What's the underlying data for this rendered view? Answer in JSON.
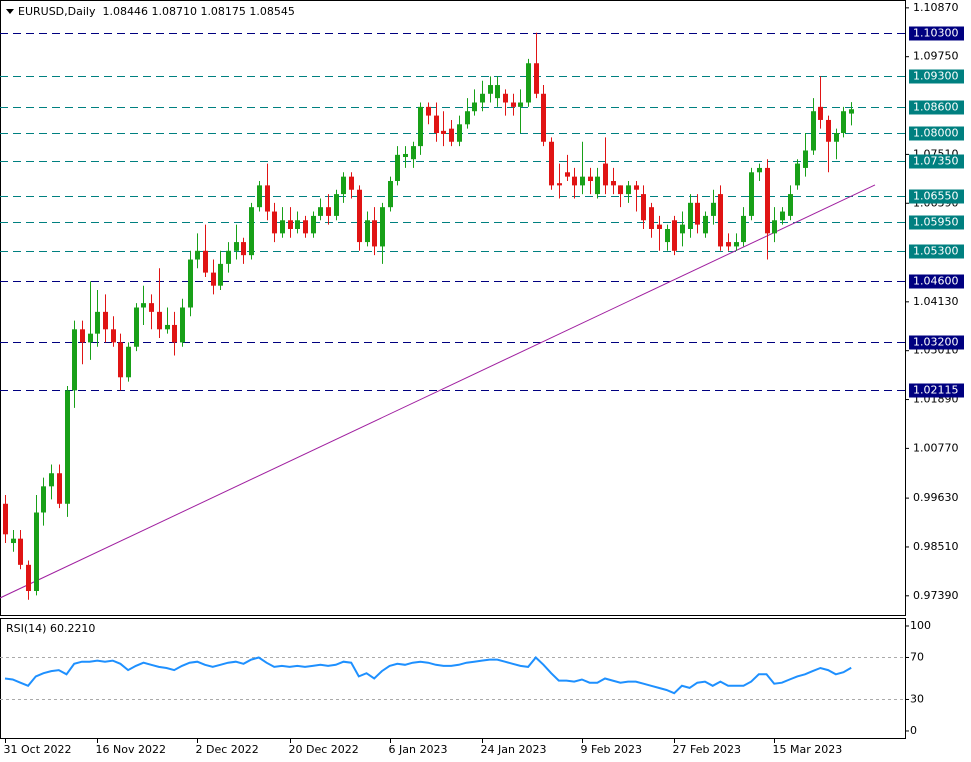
{
  "chart_data": {
    "type": "candlestick",
    "header": "EURUSD,Daily  1.08446 1.08710 1.08175 1.08545",
    "up_color": "#18a018",
    "down_color": "#e01414",
    "xlim": [
      -0.65,
      117
    ],
    "ylim": [
      0.9695,
      1.1105
    ],
    "xticks": [
      {
        "value": 0,
        "label": "31 Oct 2022"
      },
      {
        "value": 12,
        "label": "16 Nov 2022"
      },
      {
        "value": 25,
        "label": "2 Dec 2022"
      },
      {
        "value": 37,
        "label": "20 Dec 2022"
      },
      {
        "value": 50,
        "label": "6 Jan 2023"
      },
      {
        "value": 62,
        "label": "24 Jan 2023"
      },
      {
        "value": 75,
        "label": "9 Feb 2023"
      },
      {
        "value": 87,
        "label": "27 Feb 2023"
      },
      {
        "value": 100,
        "label": "15 Mar 2023"
      }
    ],
    "yticks": [
      {
        "value": 1.1087,
        "label": "1.10870"
      },
      {
        "value": 1.0975,
        "label": "1.09750"
      },
      {
        "value": 1.0751,
        "label": "1.07510"
      },
      {
        "value": 1.0639,
        "label": "1.06390"
      },
      {
        "value": 1.0413,
        "label": "1.04130"
      },
      {
        "value": 1.0301,
        "label": "1.03010"
      },
      {
        "value": 1.0189,
        "label": "1.01890"
      },
      {
        "value": 1.0077,
        "label": "1.00770"
      },
      {
        "value": 0.9963,
        "label": "0.99630"
      },
      {
        "value": 0.9851,
        "label": "0.98510"
      },
      {
        "value": 0.9739,
        "label": "0.97390"
      }
    ],
    "levels": [
      {
        "value": 1.103,
        "label": "1.10300",
        "color": "#000080"
      },
      {
        "value": 1.093,
        "label": "1.09300",
        "color": "#008080"
      },
      {
        "value": 1.086,
        "label": "1.08600",
        "color": "#008080"
      },
      {
        "value": 1.08,
        "label": "1.08000",
        "color": "#008080"
      },
      {
        "value": 1.0735,
        "label": "1.07350",
        "color": "#008080"
      },
      {
        "value": 1.0655,
        "label": "1.06550",
        "color": "#008080"
      },
      {
        "value": 1.0595,
        "label": "1.05950",
        "color": "#008080"
      },
      {
        "value": 1.053,
        "label": "1.05300",
        "color": "#008080"
      },
      {
        "value": 1.046,
        "label": "1.04600",
        "color": "#000080"
      },
      {
        "value": 1.032,
        "label": "1.03200",
        "color": "#000080"
      },
      {
        "value": 1.02115,
        "label": "1.02115",
        "color": "#000080"
      }
    ],
    "trendline": {
      "color": "#a020a0",
      "x": [
        -0.65,
        113.1
      ],
      "y": [
        0.9734,
        1.0681
      ]
    },
    "candles": [
      [
        0.995,
        0.997,
        0.986,
        0.988
      ],
      [
        0.986,
        0.989,
        0.984,
        0.987
      ],
      [
        0.987,
        0.989,
        0.98,
        0.981
      ],
      [
        0.981,
        0.982,
        0.973,
        0.975
      ],
      [
        0.975,
        0.997,
        0.974,
        0.993
      ],
      [
        0.993,
        1.001,
        0.99,
        0.999
      ],
      [
        0.999,
        1.004,
        0.996,
        1.002
      ],
      [
        1.002,
        1.004,
        0.994,
        0.995
      ],
      [
        0.995,
        1.022,
        0.992,
        1.021
      ],
      [
        1.021,
        1.037,
        1.017,
        1.035
      ],
      [
        1.035,
        1.037,
        1.027,
        1.032
      ],
      [
        1.032,
        1.046,
        1.028,
        1.034
      ],
      [
        1.034,
        1.044,
        1.031,
        1.039
      ],
      [
        1.039,
        1.043,
        1.032,
        1.035
      ],
      [
        1.035,
        1.038,
        1.031,
        1.032
      ],
      [
        1.032,
        1.034,
        1.021,
        1.024
      ],
      [
        1.024,
        1.032,
        1.023,
        1.031
      ],
      [
        1.031,
        1.041,
        1.03,
        1.04
      ],
      [
        1.04,
        1.045,
        1.036,
        1.041
      ],
      [
        1.041,
        1.043,
        1.035,
        1.039
      ],
      [
        1.039,
        1.049,
        1.033,
        1.035
      ],
      [
        1.035,
        1.04,
        1.034,
        1.036
      ],
      [
        1.036,
        1.039,
        1.029,
        1.032
      ],
      [
        1.032,
        1.042,
        1.031,
        1.04
      ],
      [
        1.04,
        1.053,
        1.038,
        1.051
      ],
      [
        1.051,
        1.057,
        1.049,
        1.053
      ],
      [
        1.053,
        1.059,
        1.047,
        1.048
      ],
      [
        1.048,
        1.051,
        1.043,
        1.045
      ],
      [
        1.045,
        1.053,
        1.044,
        1.05
      ],
      [
        1.05,
        1.055,
        1.048,
        1.053
      ],
      [
        1.053,
        1.059,
        1.051,
        1.055
      ],
      [
        1.055,
        1.056,
        1.05,
        1.052
      ],
      [
        1.052,
        1.064,
        1.051,
        1.063
      ],
      [
        1.063,
        1.069,
        1.062,
        1.068
      ],
      [
        1.068,
        1.073,
        1.06,
        1.062
      ],
      [
        1.062,
        1.064,
        1.055,
        1.057
      ],
      [
        1.057,
        1.063,
        1.056,
        1.06
      ],
      [
        1.06,
        1.063,
        1.056,
        1.058
      ],
      [
        1.058,
        1.062,
        1.057,
        1.06
      ],
      [
        1.06,
        1.061,
        1.056,
        1.057
      ],
      [
        1.057,
        1.062,
        1.056,
        1.061
      ],
      [
        1.061,
        1.065,
        1.06,
        1.063
      ],
      [
        1.063,
        1.066,
        1.059,
        1.061
      ],
      [
        1.061,
        1.067,
        1.06,
        1.066
      ],
      [
        1.066,
        1.071,
        1.064,
        1.07
      ],
      [
        1.07,
        1.071,
        1.065,
        1.067
      ],
      [
        1.067,
        1.068,
        1.053,
        1.055
      ],
      [
        1.055,
        1.062,
        1.054,
        1.06
      ],
      [
        1.06,
        1.063,
        1.052,
        1.054
      ],
      [
        1.054,
        1.064,
        1.05,
        1.063
      ],
      [
        1.063,
        1.07,
        1.062,
        1.069
      ],
      [
        1.069,
        1.077,
        1.068,
        1.075
      ],
      [
        1.0745,
        1.077,
        1.072,
        1.0752
      ],
      [
        1.074,
        1.078,
        1.072,
        1.077
      ],
      [
        1.077,
        1.087,
        1.075,
        1.086
      ],
      [
        1.086,
        1.087,
        1.082,
        1.084
      ],
      [
        1.084,
        1.087,
        1.078,
        1.08
      ],
      [
        1.0805,
        1.085,
        1.077,
        1.0798
      ],
      [
        1.081,
        1.083,
        1.077,
        1.078
      ],
      [
        1.078,
        1.084,
        1.077,
        1.082
      ],
      [
        1.082,
        1.088,
        1.081,
        1.085
      ],
      [
        1.085,
        1.09,
        1.084,
        1.087
      ],
      [
        1.087,
        1.092,
        1.085,
        1.089
      ],
      [
        1.089,
        1.093,
        1.087,
        1.091
      ],
      [
        1.088,
        1.093,
        1.086,
        1.091
      ],
      [
        1.089,
        1.09,
        1.084,
        1.087
      ],
      [
        1.087,
        1.089,
        1.084,
        1.086
      ],
      [
        1.086,
        1.09,
        1.08,
        1.087
      ],
      [
        1.087,
        1.097,
        1.086,
        1.096
      ],
      [
        1.096,
        1.103,
        1.088,
        1.089
      ],
      [
        1.089,
        1.091,
        1.077,
        1.078
      ],
      [
        1.078,
        1.079,
        1.067,
        1.068
      ],
      [
        1.0685,
        1.073,
        1.065,
        1.068
      ],
      [
        1.071,
        1.075,
        1.069,
        1.07
      ],
      [
        1.07,
        1.072,
        1.065,
        1.068
      ],
      [
        1.068,
        1.078,
        1.066,
        1.07
      ],
      [
        1.07,
        1.072,
        1.066,
        1.069
      ],
      [
        1.066,
        1.072,
        1.065,
        1.07
      ],
      [
        1.073,
        1.079,
        1.066,
        1.068
      ],
      [
        1.069,
        1.072,
        1.066,
        1.068
      ],
      [
        1.068,
        1.068,
        1.063,
        1.066
      ],
      [
        1.066,
        1.069,
        1.064,
        1.068
      ],
      [
        1.068,
        1.069,
        1.062,
        1.067
      ],
      [
        1.066,
        1.068,
        1.058,
        1.06
      ],
      [
        1.063,
        1.064,
        1.056,
        1.058
      ],
      [
        1.059,
        1.061,
        1.053,
        1.058
      ],
      [
        1.055,
        1.059,
        1.053,
        1.058
      ],
      [
        1.06,
        1.061,
        1.052,
        1.053
      ],
      [
        1.057,
        1.062,
        1.054,
        1.059
      ],
      [
        1.058,
        1.066,
        1.056,
        1.064
      ],
      [
        1.064,
        1.066,
        1.057,
        1.059
      ],
      [
        1.057,
        1.062,
        1.056,
        1.061
      ],
      [
        1.061,
        1.067,
        1.059,
        1.064
      ],
      [
        1.066,
        1.068,
        1.053,
        1.054
      ],
      [
        1.055,
        1.057,
        1.053,
        1.054
      ],
      [
        1.054,
        1.057,
        1.053,
        1.055
      ],
      [
        1.055,
        1.063,
        1.054,
        1.061
      ],
      [
        1.061,
        1.072,
        1.06,
        1.071
      ],
      [
        1.071,
        1.073,
        1.069,
        1.072
      ],
      [
        1.072,
        1.074,
        1.051,
        1.057
      ],
      [
        1.057,
        1.063,
        1.055,
        1.06
      ],
      [
        1.06,
        1.063,
        1.059,
        1.062
      ],
      [
        1.061,
        1.068,
        1.06,
        1.066
      ],
      [
        1.068,
        1.074,
        1.067,
        1.073
      ],
      [
        1.072,
        1.08,
        1.07,
        1.076
      ],
      [
        1.076,
        1.088,
        1.075,
        1.085
      ],
      [
        1.086,
        1.093,
        1.081,
        1.083
      ],
      [
        1.083,
        1.084,
        1.071,
        1.078
      ],
      [
        1.078,
        1.081,
        1.074,
        1.08
      ],
      [
        1.08,
        1.086,
        1.079,
        1.085
      ],
      [
        1.08446,
        1.0871,
        1.08175,
        1.08545
      ]
    ],
    "rsi": {
      "title": "RSI(14) 60.2210",
      "color": "#1e90ff",
      "ylim": [
        -6.7,
        107.6
      ],
      "yticks": [
        100,
        70,
        30,
        0
      ],
      "levels": [
        70,
        30
      ],
      "values": [
        50,
        49,
        46,
        43,
        52,
        55,
        57,
        58,
        54,
        64,
        66,
        66,
        67,
        66,
        67,
        64,
        58,
        62,
        65,
        63,
        61,
        60,
        58,
        62,
        65,
        66,
        63,
        61,
        63,
        65,
        66,
        64,
        68,
        70,
        65,
        61,
        62,
        61,
        62,
        61,
        62,
        63,
        62,
        63,
        66,
        65,
        52,
        55,
        50,
        57,
        62,
        64,
        63,
        65,
        66,
        65,
        63,
        62,
        62,
        63,
        65,
        66,
        67,
        68,
        68,
        66,
        64,
        62,
        61,
        70,
        63,
        55,
        48,
        48,
        47,
        49,
        46,
        46,
        50,
        48,
        46,
        47,
        47,
        45,
        43,
        41,
        39,
        36,
        43,
        41,
        46,
        47,
        43,
        47,
        43,
        43,
        43,
        47,
        54,
        54,
        45,
        46,
        49,
        52,
        54,
        57,
        60,
        58,
        54,
        56,
        60.221
      ]
    }
  }
}
